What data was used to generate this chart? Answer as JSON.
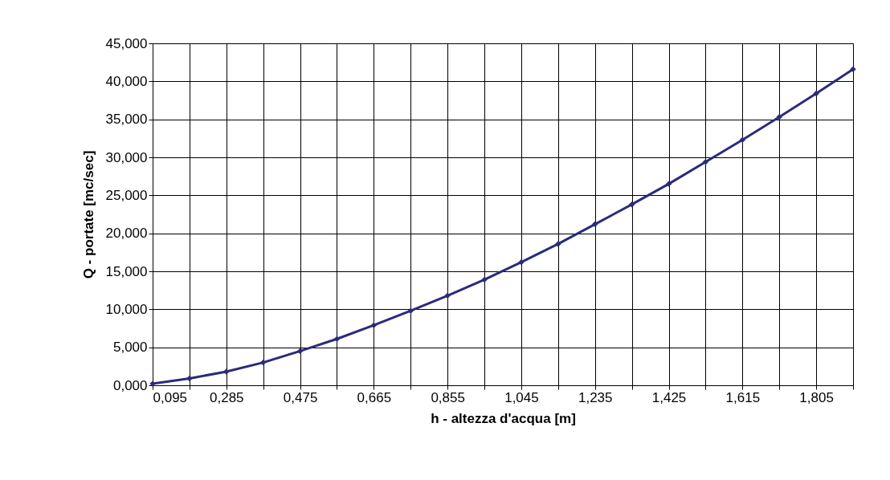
{
  "chart_data": {
    "type": "line",
    "xlabel": "h - altezza d'acqua [m]",
    "ylabel": "Q - portate [mc/sec]",
    "x": [
      0.095,
      0.19,
      0.285,
      0.38,
      0.475,
      0.57,
      0.665,
      0.76,
      0.855,
      0.95,
      1.045,
      1.14,
      1.235,
      1.33,
      1.425,
      1.52,
      1.615,
      1.71,
      1.805,
      1.9
    ],
    "series": [
      {
        "color": "#2b2b7a",
        "values": [
          0.2,
          0.9,
          1.8,
          3.0,
          4.5,
          6.1,
          7.9,
          9.8,
          11.8,
          13.9,
          16.2,
          18.6,
          21.2,
          23.8,
          26.5,
          29.4,
          32.3,
          35.3,
          38.4,
          41.6
        ]
      }
    ],
    "xlim": [
      0.095,
      1.9
    ],
    "xticks": [
      {
        "value": 0.095,
        "label": "0,095"
      },
      {
        "value": 0.19,
        "label": null
      },
      {
        "value": 0.285,
        "label": "0,285"
      },
      {
        "value": 0.38,
        "label": null
      },
      {
        "value": 0.475,
        "label": "0,475"
      },
      {
        "value": 0.57,
        "label": null
      },
      {
        "value": 0.665,
        "label": "0,665"
      },
      {
        "value": 0.76,
        "label": null
      },
      {
        "value": 0.855,
        "label": "0,855"
      },
      {
        "value": 0.95,
        "label": null
      },
      {
        "value": 1.045,
        "label": "1,045"
      },
      {
        "value": 1.14,
        "label": null
      },
      {
        "value": 1.235,
        "label": "1,235"
      },
      {
        "value": 1.33,
        "label": null
      },
      {
        "value": 1.425,
        "label": "1,425"
      },
      {
        "value": 1.52,
        "label": null
      },
      {
        "value": 1.615,
        "label": "1,615"
      },
      {
        "value": 1.71,
        "label": null
      },
      {
        "value": 1.805,
        "label": "1,805"
      },
      {
        "value": 1.9,
        "label": null
      }
    ],
    "ylim": [
      0,
      45
    ],
    "yticks": [
      {
        "value": 0,
        "label": "0,000"
      },
      {
        "value": 5,
        "label": "5,000"
      },
      {
        "value": 10,
        "label": "10,000"
      },
      {
        "value": 15,
        "label": "15,000"
      },
      {
        "value": 20,
        "label": "20,000"
      },
      {
        "value": 25,
        "label": "25,000"
      },
      {
        "value": 30,
        "label": "30,000"
      },
      {
        "value": 35,
        "label": "35,000"
      },
      {
        "value": 40,
        "label": "40,000"
      },
      {
        "value": 45,
        "label": "45,000"
      }
    ],
    "grid": true,
    "marker": "diamond",
    "line_style": "solid"
  }
}
